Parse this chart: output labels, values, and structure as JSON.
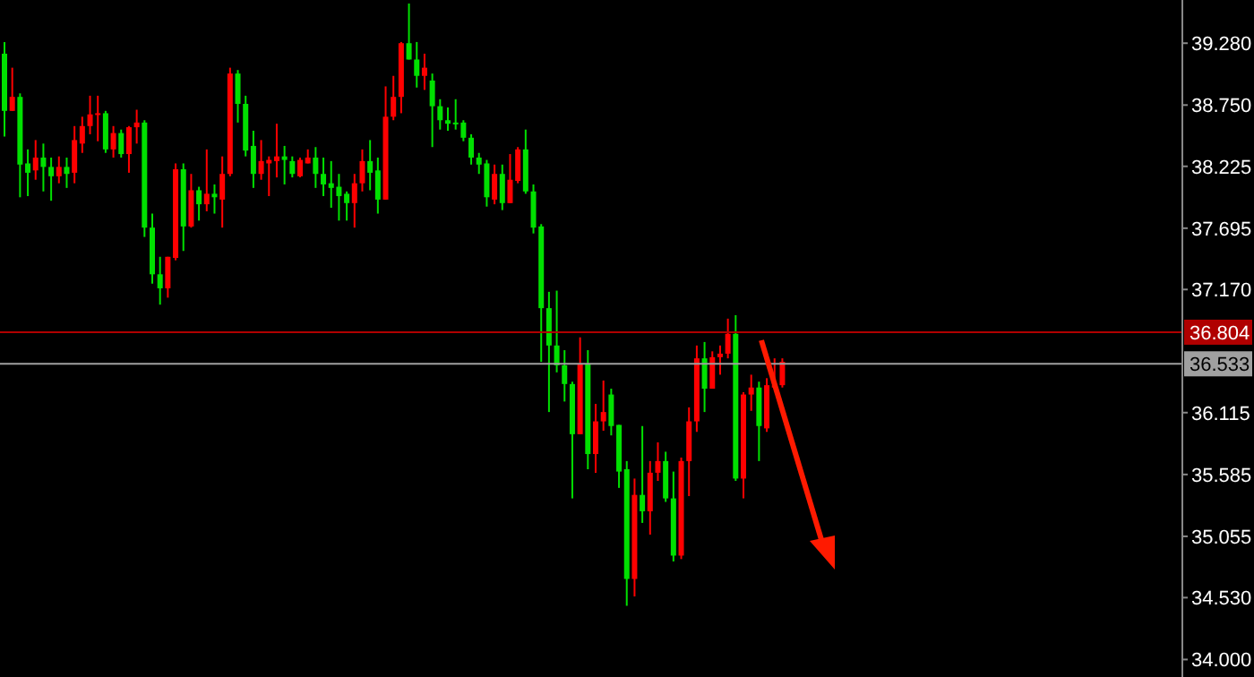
{
  "chart_data": {
    "type": "candlestick",
    "categories": [
      null,
      null,
      null,
      null,
      null,
      null,
      null,
      null,
      null,
      null,
      null,
      null,
      null,
      null,
      null,
      null,
      null,
      null,
      null,
      null,
      null,
      null,
      null,
      null,
      null,
      null,
      null,
      null,
      null,
      null,
      null,
      null,
      null,
      null,
      null,
      null,
      null,
      null,
      null,
      null,
      null,
      null,
      null,
      null,
      null,
      null,
      null,
      null,
      null,
      null,
      null,
      null,
      null,
      null,
      null,
      null,
      null,
      null,
      null,
      null,
      null,
      null,
      null,
      null,
      null,
      null,
      null,
      null,
      null,
      null,
      null,
      null,
      null,
      null,
      null,
      null,
      null,
      null,
      null,
      null,
      null,
      null,
      null,
      null,
      null,
      null,
      null,
      null,
      null,
      null,
      null,
      null,
      null,
      null,
      null,
      null,
      null,
      null,
      null,
      null,
      null,
      null,
      null,
      null,
      null,
      null,
      null,
      null,
      null,
      null,
      null,
      null,
      null,
      null,
      null,
      null,
      null,
      null,
      null,
      null,
      null,
      null,
      null,
      null,
      null,
      null,
      null,
      null,
      null,
      null,
      null,
      null,
      null,
      null,
      null,
      null,
      null,
      null,
      null,
      null,
      null,
      null,
      null,
      null,
      null,
      null,
      null,
      null,
      null,
      null,
      null,
      null
    ],
    "ohlc": [
      [
        39.19,
        39.29,
        38.48,
        38.7
      ],
      [
        38.7,
        39.07,
        38.7,
        38.82
      ],
      [
        38.82,
        38.85,
        37.96,
        38.24
      ],
      [
        38.25,
        38.37,
        37.97,
        38.17
      ],
      [
        38.19,
        38.45,
        38.11,
        38.3
      ],
      [
        38.3,
        38.42,
        38.01,
        38.22
      ],
      [
        38.22,
        38.3,
        37.93,
        38.14
      ],
      [
        38.14,
        38.31,
        38.08,
        38.22
      ],
      [
        38.22,
        38.3,
        38.04,
        38.16
      ],
      [
        38.17,
        38.57,
        38.08,
        38.45
      ],
      [
        38.42,
        38.65,
        38.34,
        38.57
      ],
      [
        38.57,
        38.83,
        38.5,
        38.67
      ],
      [
        38.67,
        38.83,
        38.44,
        38.68
      ],
      [
        38.68,
        38.7,
        38.34,
        38.37
      ],
      [
        38.37,
        38.57,
        38.3,
        38.51
      ],
      [
        38.51,
        38.54,
        38.3,
        38.33
      ],
      [
        38.33,
        38.57,
        38.17,
        38.56
      ],
      [
        38.56,
        38.71,
        38.42,
        38.6
      ],
      [
        38.6,
        38.62,
        37.62,
        37.7
      ],
      [
        37.7,
        37.82,
        37.22,
        37.3
      ],
      [
        37.3,
        37.45,
        37.04,
        37.18
      ],
      [
        37.18,
        37.45,
        37.1,
        37.45
      ],
      [
        37.44,
        38.25,
        37.42,
        38.2
      ],
      [
        38.2,
        38.25,
        37.5,
        37.71
      ],
      [
        37.71,
        38.16,
        37.7,
        38.02
      ],
      [
        38.02,
        38.05,
        37.76,
        37.9
      ],
      [
        37.9,
        38.37,
        37.84,
        37.99
      ],
      [
        37.99,
        38.07,
        37.82,
        37.96
      ],
      [
        37.94,
        38.31,
        37.7,
        38.16
      ],
      [
        38.16,
        39.07,
        38.14,
        39.02
      ],
      [
        39.02,
        39.05,
        38.6,
        38.76
      ],
      [
        38.76,
        38.83,
        38.31,
        38.36
      ],
      [
        38.4,
        38.53,
        38.04,
        38.16
      ],
      [
        38.16,
        38.45,
        38.11,
        38.27
      ],
      [
        38.25,
        38.31,
        37.97,
        38.28
      ],
      [
        38.27,
        38.59,
        38.13,
        38.31
      ],
      [
        38.31,
        38.4,
        38.07,
        38.28
      ],
      [
        38.27,
        38.31,
        38.13,
        38.16
      ],
      [
        38.14,
        38.3,
        38.13,
        38.28
      ],
      [
        38.25,
        38.37,
        38.25,
        38.3
      ],
      [
        38.3,
        38.39,
        38.04,
        38.16
      ],
      [
        38.16,
        38.3,
        37.97,
        38.07
      ],
      [
        38.08,
        38.27,
        37.87,
        38.04
      ],
      [
        38.05,
        38.16,
        37.76,
        37.97
      ],
      [
        37.99,
        38.01,
        37.76,
        37.91
      ],
      [
        37.91,
        38.16,
        37.7,
        38.08
      ],
      [
        38.08,
        38.37,
        38.01,
        38.27
      ],
      [
        38.27,
        38.45,
        38.02,
        38.17
      ],
      [
        38.19,
        38.3,
        37.82,
        37.94
      ],
      [
        37.94,
        38.91,
        37.94,
        38.65
      ],
      [
        38.65,
        39.0,
        38.62,
        38.82
      ],
      [
        38.82,
        39.29,
        38.68,
        39.28
      ],
      [
        39.28,
        39.62,
        39.14,
        39.14
      ],
      [
        39.14,
        39.29,
        38.9,
        39.0
      ],
      [
        39.0,
        39.19,
        38.88,
        39.07
      ],
      [
        38.96,
        39.02,
        38.39,
        38.74
      ],
      [
        38.74,
        38.8,
        38.54,
        38.62
      ],
      [
        38.62,
        38.73,
        38.53,
        38.59
      ],
      [
        38.6,
        38.8,
        38.54,
        38.59
      ],
      [
        38.6,
        38.62,
        38.44,
        38.47
      ],
      [
        38.47,
        38.5,
        38.24,
        38.3
      ],
      [
        38.3,
        38.34,
        38.16,
        38.24
      ],
      [
        38.25,
        38.28,
        37.88,
        37.96
      ],
      [
        37.94,
        38.24,
        37.9,
        38.16
      ],
      [
        38.16,
        38.24,
        37.85,
        37.91
      ],
      [
        37.91,
        38.33,
        37.91,
        38.11
      ],
      [
        38.1,
        38.39,
        38.08,
        38.37
      ],
      [
        38.37,
        38.54,
        37.99,
        38.01
      ],
      [
        38.01,
        38.07,
        37.65,
        37.7
      ],
      [
        37.71,
        37.73,
        36.55,
        37.01
      ],
      [
        37.01,
        37.15,
        36.12,
        36.69
      ],
      [
        36.69,
        37.16,
        36.46,
        36.52
      ],
      [
        36.52,
        36.65,
        36.21,
        36.36
      ],
      [
        36.36,
        36.38,
        35.38,
        35.93
      ],
      [
        35.93,
        36.76,
        35.93,
        36.53
      ],
      [
        36.53,
        36.65,
        35.63,
        35.76
      ],
      [
        35.76,
        36.19,
        35.6,
        36.04
      ],
      [
        36.04,
        36.39,
        35.96,
        36.12
      ],
      [
        36.27,
        36.32,
        35.92,
        36.0
      ],
      [
        36.01,
        36.01,
        35.47,
        35.61
      ],
      [
        35.63,
        35.7,
        34.46,
        34.69
      ],
      [
        34.69,
        35.55,
        34.54,
        35.41
      ],
      [
        35.41,
        36.0,
        35.17,
        35.27
      ],
      [
        35.27,
        35.7,
        35.07,
        35.6
      ],
      [
        35.6,
        35.86,
        35.53,
        35.7
      ],
      [
        35.7,
        35.78,
        35.35,
        35.38
      ],
      [
        35.38,
        35.61,
        34.84,
        34.89
      ],
      [
        34.89,
        35.73,
        34.86,
        35.7
      ],
      [
        35.7,
        36.16,
        35.4,
        36.04
      ],
      [
        36.04,
        36.69,
        35.95,
        36.58
      ],
      [
        36.58,
        36.72,
        36.12,
        36.32
      ],
      [
        36.32,
        36.64,
        36.32,
        36.59
      ],
      [
        36.59,
        36.69,
        36.44,
        36.62
      ],
      [
        36.62,
        36.92,
        36.58,
        36.79
      ],
      [
        36.79,
        36.95,
        35.53,
        35.55
      ],
      [
        35.55,
        36.29,
        35.38,
        36.27
      ],
      [
        36.27,
        36.44,
        36.13,
        36.33
      ],
      [
        36.33,
        36.38,
        35.7,
        36.0
      ],
      [
        35.98,
        36.41,
        35.95,
        36.35
      ],
      [
        36.33,
        36.58,
        36.32,
        36.35
      ],
      [
        36.35,
        36.58,
        36.33,
        36.55
      ],
      null,
      null,
      null,
      null,
      null,
      null,
      null,
      null,
      null,
      null,
      null,
      null,
      null,
      null,
      null,
      null,
      null,
      null,
      null,
      null,
      null,
      null,
      null,
      null,
      null,
      null,
      null,
      null,
      null,
      null,
      null,
      null,
      null,
      null,
      null,
      null,
      null,
      null,
      null,
      null,
      null,
      null,
      null,
      null,
      null,
      null,
      null,
      null,
      null,
      null,
      null
    ],
    "colors": [
      "#00e000",
      "#ff0000",
      "#00e000",
      "#00e000",
      "#ff0000",
      "#00e000",
      "#00e000",
      "#ff0000",
      "#00e000",
      "#ff0000",
      "#ff0000",
      "#ff0000",
      "#ff0000",
      "#00e000",
      "#ff0000",
      "#00e000",
      "#ff0000",
      "#ff0000",
      "#00e000",
      "#00e000",
      "#00e000",
      "#ff0000",
      "#ff0000",
      "#00e000",
      "#ff0000",
      "#00e000",
      "#ff0000",
      "#00e000",
      "#ff0000",
      "#ff0000",
      "#00e000",
      "#00e000",
      "#00e000",
      "#ff0000",
      "#ff0000",
      "#ff0000",
      "#00e000",
      "#00e000",
      "#ff0000",
      "#ff0000",
      "#00e000",
      "#00e000",
      "#00e000",
      "#00e000",
      "#00e000",
      "#ff0000",
      "#ff0000",
      "#00e000",
      "#00e000",
      "#ff0000",
      "#ff0000",
      "#ff0000",
      "#00e000",
      "#00e000",
      "#ff0000",
      "#00e000",
      "#00e000",
      "#00e000",
      "#00e000",
      "#00e000",
      "#00e000",
      "#00e000",
      "#00e000",
      "#ff0000",
      "#00e000",
      "#ff0000",
      "#ff0000",
      "#00e000",
      "#00e000",
      "#00e000",
      "#00e000",
      "#00e000",
      "#00e000",
      "#00e000",
      "#ff0000",
      "#00e000",
      "#ff0000",
      "#ff0000",
      "#00e000",
      "#00e000",
      "#00e000",
      "#ff0000",
      "#00e000",
      "#ff0000",
      "#ff0000",
      "#00e000",
      "#00e000",
      "#ff0000",
      "#ff0000",
      "#ff0000",
      "#00e000",
      "#ff0000",
      "#ff0000",
      "#ff0000",
      "#00e000",
      "#ff0000",
      "#ff0000",
      "#00e000",
      "#ff0000",
      "#ff0000",
      "#ff0000",
      null,
      null,
      null,
      null,
      null,
      null,
      null,
      null,
      null,
      null,
      null,
      null,
      null,
      null,
      null,
      null,
      null,
      null,
      null,
      null,
      null,
      null,
      null,
      null,
      null,
      null,
      null,
      null,
      null,
      null,
      null,
      null,
      null,
      null,
      null,
      null,
      null,
      null,
      null,
      null,
      null,
      null,
      null,
      null,
      null,
      null,
      null,
      null,
      null,
      null,
      null
    ],
    "ylim": [
      33.85,
      39.65
    ],
    "yticks": [
      {
        "value": 39.28,
        "label": "39.280"
      },
      {
        "value": 38.75,
        "label": "38.750"
      },
      {
        "value": 38.225,
        "label": "38.225"
      },
      {
        "value": 37.695,
        "label": "37.695"
      },
      {
        "value": 37.17,
        "label": "37.170"
      },
      {
        "value": 36.115,
        "label": "36.115"
      },
      {
        "value": 35.585,
        "label": "35.585"
      },
      {
        "value": 35.055,
        "label": "35.055"
      },
      {
        "value": 34.53,
        "label": "34.530"
      },
      {
        "value": 34,
        "label": "34.000"
      }
    ],
    "ref_lines": [
      {
        "axis": "y",
        "value": 36.804,
        "label": "36.804",
        "color": "#b00000"
      },
      {
        "axis": "y",
        "value": 36.533,
        "label": "36.533",
        "color": "#a0a0a0"
      }
    ],
    "tick_labels": "y"
  }
}
